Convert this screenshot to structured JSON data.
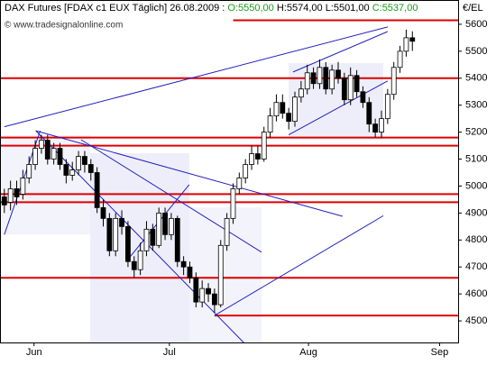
{
  "chart_data": {
    "type": "candlestick",
    "title": "DAX Futures [FDAX c1 EUX  Täglich] 26.08.2009 :",
    "ohlc_labels": [
      "O:5550,00",
      "H:5574,00",
      "L:5501,00",
      "C:5537,00"
    ],
    "y_label": "€/EL",
    "watermark": "© www.tradesignalonline.com",
    "open": [
      4960,
      4940,
      4990,
      4970,
      5030,
      5080,
      5140,
      5170,
      5100,
      5140,
      5080,
      5040,
      5060,
      5110,
      5080,
      5050,
      4920,
      4880,
      4760,
      4880,
      4850,
      4720,
      4690,
      4760,
      4840,
      4780,
      4900,
      4820,
      4880,
      4720,
      4700,
      4660,
      4570,
      4620,
      4600,
      4560,
      4780,
      4880,
      4990,
      5030,
      5080,
      5120,
      5100,
      5200,
      5260,
      5310,
      5270,
      5240,
      5330,
      5360,
      5420,
      5380,
      5440,
      5360,
      5430,
      5400,
      5320,
      5410,
      5350,
      5310,
      5230,
      5200,
      5250,
      5340,
      5440,
      5500,
      5550
    ],
    "high": [
      4990,
      5020,
      5020,
      5060,
      5110,
      5170,
      5190,
      5190,
      5160,
      5160,
      5100,
      5090,
      5130,
      5130,
      5100,
      5070,
      4950,
      4900,
      4900,
      4910,
      4870,
      4740,
      4790,
      4870,
      4860,
      4920,
      4920,
      4900,
      4890,
      4740,
      4720,
      4680,
      4650,
      4640,
      4620,
      4800,
      4900,
      5010,
      5050,
      5100,
      5150,
      5150,
      5220,
      5290,
      5340,
      5340,
      5290,
      5350,
      5390,
      5450,
      5440,
      5470,
      5460,
      5450,
      5460,
      5420,
      5440,
      5430,
      5370,
      5330,
      5250,
      5280,
      5360,
      5460,
      5520,
      5580,
      5574
    ],
    "low": [
      4900,
      4910,
      4930,
      4950,
      5010,
      5060,
      5120,
      5080,
      5080,
      5060,
      5010,
      5020,
      5040,
      5050,
      5020,
      4900,
      4850,
      4740,
      4740,
      4820,
      4700,
      4660,
      4670,
      4740,
      4760,
      4770,
      4800,
      4800,
      4700,
      4670,
      4640,
      4550,
      4550,
      4570,
      4530,
      4550,
      4760,
      4860,
      4970,
      5010,
      5060,
      5080,
      5090,
      5180,
      5240,
      5250,
      5210,
      5220,
      5310,
      5340,
      5360,
      5360,
      5340,
      5340,
      5380,
      5300,
      5300,
      5330,
      5290,
      5200,
      5180,
      5180,
      5230,
      5320,
      5420,
      5480,
      5501
    ],
    "close": [
      4930,
      4990,
      4960,
      5030,
      5080,
      5140,
      5170,
      5100,
      5140,
      5080,
      5040,
      5060,
      5110,
      5080,
      5050,
      4920,
      4880,
      4760,
      4880,
      4850,
      4720,
      4690,
      4760,
      4840,
      4780,
      4900,
      4820,
      4880,
      4720,
      4700,
      4660,
      4570,
      4620,
      4600,
      4560,
      4780,
      4880,
      4990,
      5030,
      5080,
      5120,
      5100,
      5200,
      5260,
      5310,
      5270,
      5240,
      5330,
      5360,
      5420,
      5380,
      5440,
      5360,
      5430,
      5400,
      5320,
      5410,
      5350,
      5310,
      5230,
      5200,
      5250,
      5340,
      5440,
      5500,
      5550,
      5537
    ],
    "up_color": "#ffffff",
    "down_color": "#000000",
    "xlim": [
      -0.7,
      73.4
    ],
    "xticks": [
      {
        "value": 4.8,
        "label": "Jun"
      },
      {
        "value": 26.7,
        "label": "Jul"
      },
      {
        "value": 49.2,
        "label": "Aug"
      },
      {
        "value": 70.4,
        "label": "Sep"
      }
    ],
    "ylim": [
      4420,
      5690
    ],
    "yticks": [
      4500,
      4600,
      4700,
      4800,
      4900,
      5000,
      5100,
      5200,
      5300,
      5400,
      5500,
      5600
    ],
    "reference_lines": [
      {
        "value": 5615,
        "start": 37
      },
      {
        "value": 5400,
        "start": -0.7
      },
      {
        "value": 5180,
        "start": -0.7
      },
      {
        "value": 5150,
        "start": -0.7
      },
      {
        "value": 4970,
        "start": -0.7
      },
      {
        "value": 4940,
        "start": -0.7
      },
      {
        "value": 4660,
        "start": -0.7
      },
      {
        "value": 4520,
        "start": 34
      }
    ],
    "reference_color": "#e00000",
    "trendlines": [
      [
        0,
        5220,
        62,
        5590
      ],
      [
        34,
        4520,
        61.3,
        4890
      ],
      [
        5.1,
        5205,
        54.7,
        4888
      ],
      [
        5.1,
        5205,
        38.7,
        4420
      ],
      [
        0,
        4820,
        5.8,
        5205
      ],
      [
        12.4,
        5172,
        41.6,
        4755
      ],
      [
        19.7,
        4720,
        29.9,
        5005
      ],
      [
        46,
        5190,
        62,
        5390
      ],
      [
        46.7,
        5423,
        62,
        5573
      ]
    ],
    "trend_color": "#2020c0"
  }
}
